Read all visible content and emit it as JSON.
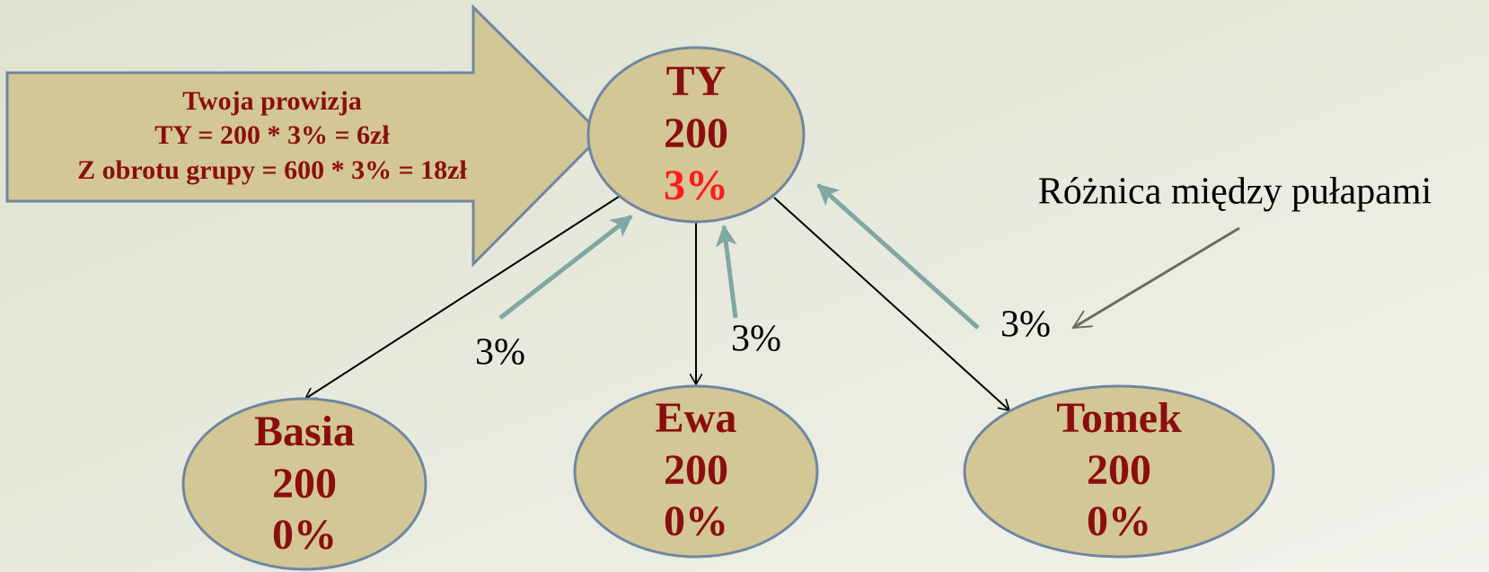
{
  "callout": {
    "lines": [
      "Twoja prowizja",
      "TY = 200 * 3% = 6zł",
      "Z obrotu grupy = 600 * 3% = 18zł"
    ]
  },
  "nodes": [
    {
      "name": "TY",
      "amount": "200",
      "rate": "3%"
    },
    {
      "name": "Basia",
      "amount": "200",
      "rate": "0%"
    },
    {
      "name": "Ewa",
      "amount": "200",
      "rate": "0%"
    },
    {
      "name": "Tomek",
      "amount": "200",
      "rate": "0%"
    }
  ],
  "edge_labels": [
    "3%",
    "3%",
    "3%"
  ],
  "annotation": "Różnica między pułapami"
}
